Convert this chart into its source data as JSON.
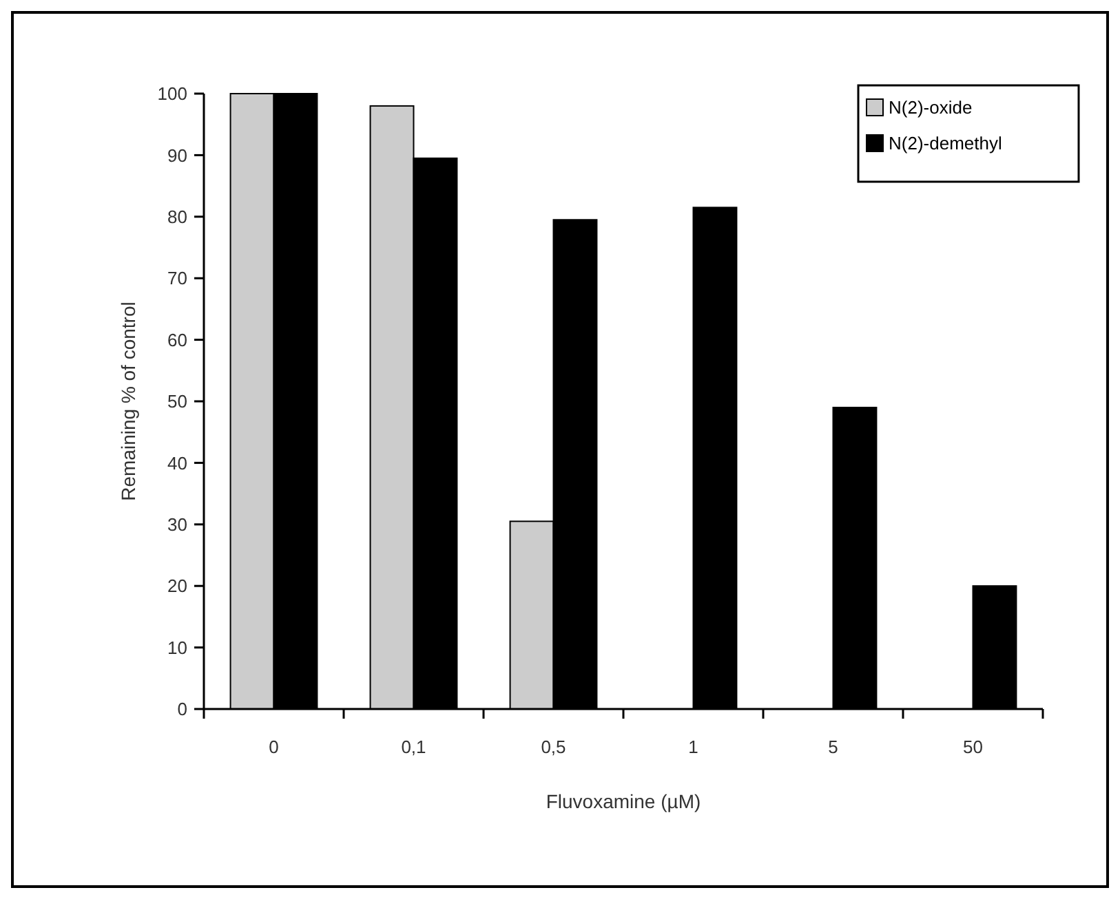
{
  "chart_data": {
    "type": "bar",
    "xlabel": "Fluvoxamine (µM)",
    "ylabel": "Remaining % of control",
    "categories": [
      "0",
      "0,1",
      "0,5",
      "1",
      "5",
      "50"
    ],
    "series": [
      {
        "name": "N(2)-oxide",
        "color": "#cccccc",
        "values": [
          100,
          98,
          30.5,
          null,
          null,
          null
        ]
      },
      {
        "name": "N(2)-demethyl",
        "color": "#000000",
        "values": [
          100,
          89.5,
          79.5,
          81.5,
          49,
          20
        ]
      }
    ],
    "ylim": [
      0,
      100
    ],
    "yticks": [
      0,
      10,
      20,
      30,
      40,
      50,
      60,
      70,
      80,
      90,
      100
    ],
    "grid": false,
    "legend": "top right"
  }
}
